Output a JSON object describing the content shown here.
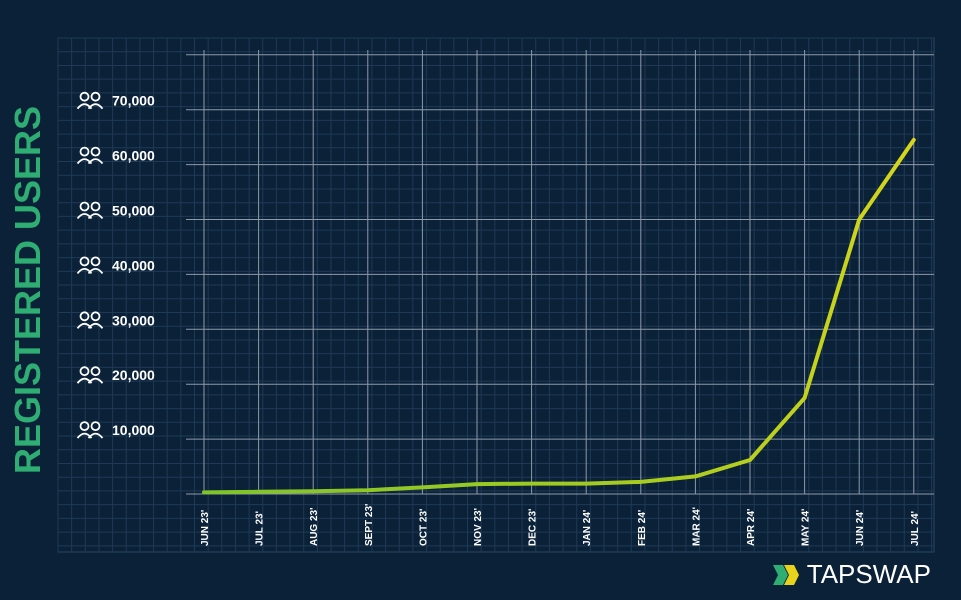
{
  "brand": {
    "name": "TAPSWAP"
  },
  "colors": {
    "background": "#0b2138",
    "grid_major": "#8d9aa8",
    "grid_minor": "#1e3a55",
    "line": "#c9d418",
    "line_start": "#7fc42a",
    "accent": "#2fae74"
  },
  "chart_data": {
    "type": "line",
    "ylabel": "REGISTERED USERS",
    "xlabel": "",
    "title": "",
    "categories": [
      "JUN 23'",
      "JUL 23'",
      "AUG 23'",
      "SEPT 23'",
      "OCT 23'",
      "NOV 23'",
      "DEC 23'",
      "JAN 24'",
      "FEB 24'",
      "MAR 24'",
      "APR 24'",
      "MAY 24'",
      "JUN 24'",
      "JUL 24'"
    ],
    "values": [
      300,
      400,
      500,
      700,
      1200,
      1800,
      1900,
      1900,
      2200,
      3200,
      6200,
      17500,
      50000,
      64500
    ],
    "yticks": [
      "10,000",
      "20,000",
      "30,000",
      "40,000",
      "50,000",
      "60,000",
      "70,000"
    ],
    "ytick_values": [
      10000,
      20000,
      30000,
      40000,
      50000,
      60000,
      70000
    ],
    "ytick_icon": "users-icon",
    "ylim": [
      0,
      80000
    ],
    "grid": true
  }
}
